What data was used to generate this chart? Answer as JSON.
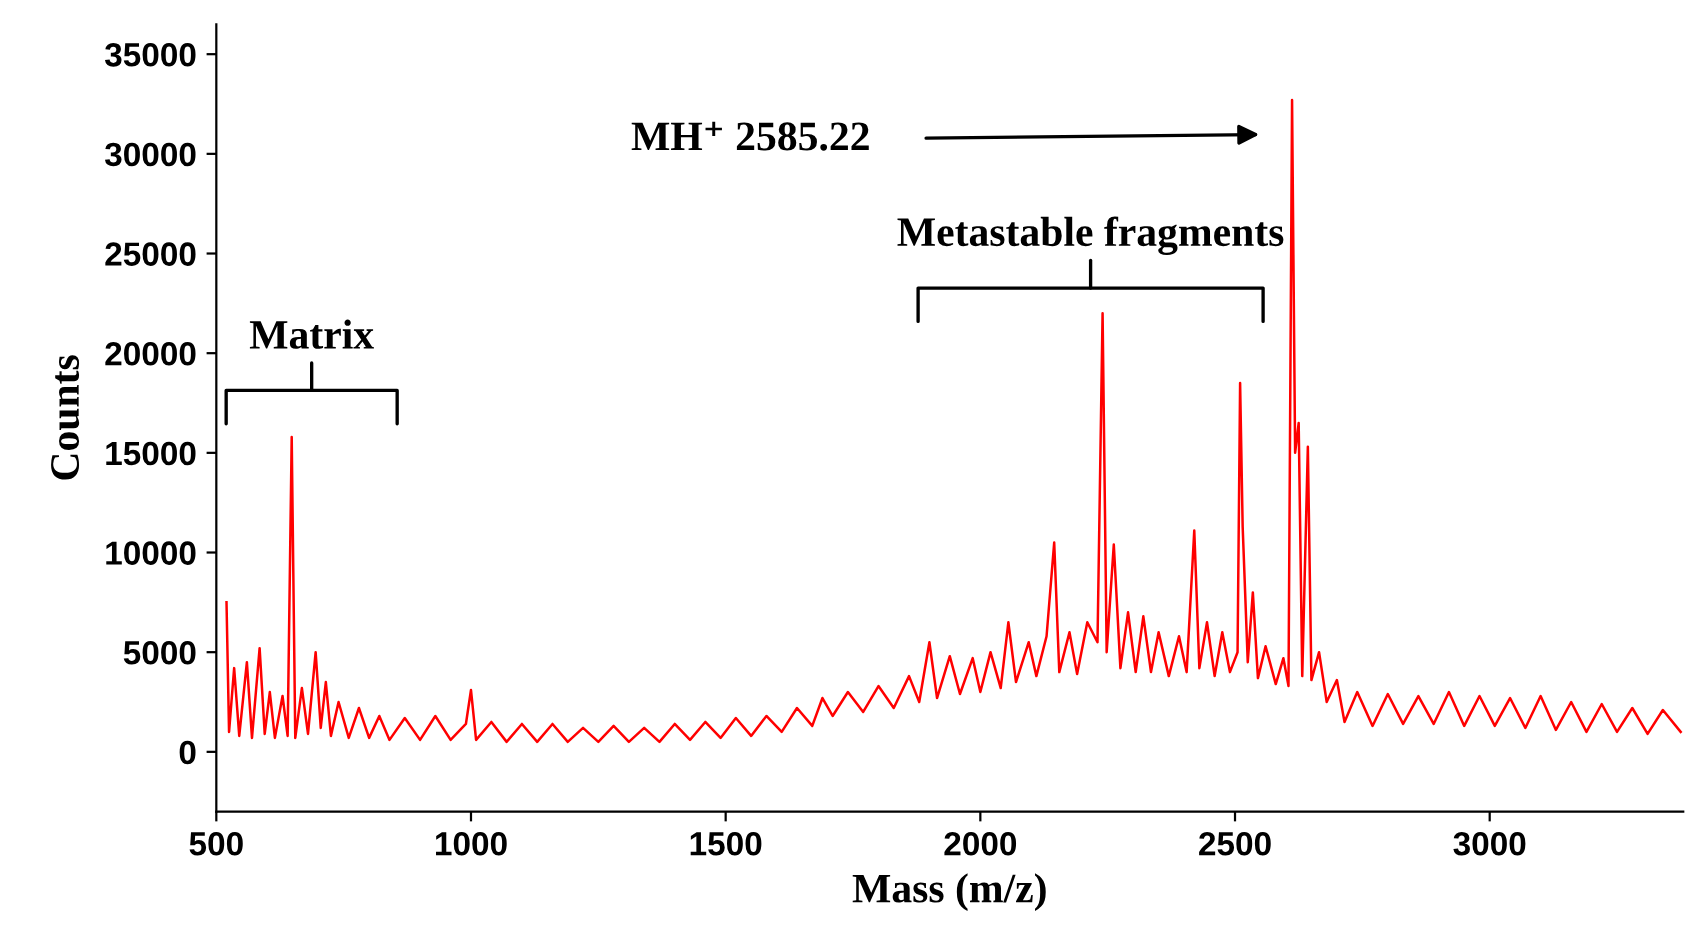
{
  "chart_data": {
    "type": "line",
    "xlabel": "Mass (m/z)",
    "ylabel": "Counts",
    "xlim": [
      500,
      3380
    ],
    "xticks": [
      500,
      1000,
      1500,
      2000,
      2500,
      3000
    ],
    "ylim": [
      -3000,
      36500
    ],
    "yticks": [
      0,
      5000,
      10000,
      15000,
      20000,
      25000,
      30000,
      35000
    ],
    "grid": false,
    "legend": false,
    "marker": "none",
    "line_style": "solid",
    "series": [
      {
        "color": "#ff0000",
        "x": [
          520,
          525,
          535,
          545,
          560,
          570,
          585,
          595,
          605,
          615,
          630,
          640,
          648,
          655,
          668,
          680,
          695,
          705,
          715,
          725,
          740,
          760,
          780,
          800,
          820,
          840,
          870,
          900,
          930,
          960,
          990,
          1000,
          1010,
          1040,
          1070,
          1100,
          1130,
          1160,
          1190,
          1220,
          1250,
          1280,
          1310,
          1340,
          1370,
          1400,
          1430,
          1460,
          1490,
          1520,
          1550,
          1580,
          1610,
          1640,
          1670,
          1690,
          1710,
          1740,
          1770,
          1800,
          1830,
          1860,
          1880,
          1900,
          1915,
          1940,
          1960,
          1985,
          2000,
          2020,
          2040,
          2055,
          2070,
          2095,
          2110,
          2130,
          2145,
          2155,
          2175,
          2190,
          2210,
          2230,
          2240,
          2248,
          2262,
          2275,
          2290,
          2305,
          2320,
          2335,
          2350,
          2370,
          2390,
          2405,
          2420,
          2430,
          2445,
          2460,
          2475,
          2490,
          2505,
          2510,
          2515,
          2525,
          2535,
          2545,
          2560,
          2580,
          2595,
          2605,
          2612,
          2618,
          2625,
          2632,
          2643,
          2650,
          2665,
          2680,
          2700,
          2715,
          2740,
          2770,
          2800,
          2830,
          2860,
          2890,
          2920,
          2950,
          2980,
          3010,
          3040,
          3070,
          3100,
          3130,
          3160,
          3190,
          3220,
          3250,
          3280,
          3310,
          3340,
          3375
        ],
        "values": [
          7500,
          1000,
          4200,
          800,
          4500,
          700,
          5200,
          900,
          3000,
          700,
          2800,
          800,
          15800,
          700,
          3200,
          900,
          5000,
          1200,
          3500,
          800,
          2500,
          700,
          2200,
          700,
          1800,
          600,
          1700,
          600,
          1800,
          600,
          1400,
          3100,
          600,
          1500,
          500,
          1400,
          500,
          1400,
          500,
          1200,
          500,
          1300,
          500,
          1200,
          500,
          1400,
          600,
          1500,
          700,
          1700,
          800,
          1800,
          1000,
          2200,
          1300,
          2700,
          1800,
          3000,
          2000,
          3300,
          2200,
          3800,
          2500,
          5500,
          2700,
          4800,
          2900,
          4700,
          3000,
          5000,
          3200,
          6500,
          3500,
          5500,
          3800,
          5800,
          10500,
          4000,
          6000,
          3900,
          6500,
          5500,
          22000,
          5000,
          10400,
          4200,
          7000,
          4000,
          6800,
          4000,
          6000,
          3800,
          5800,
          4000,
          11100,
          4200,
          6500,
          3800,
          6000,
          4000,
          5000,
          18500,
          11300,
          4500,
          8000,
          3700,
          5300,
          3400,
          4700,
          3300,
          32700,
          15000,
          16500,
          3800,
          15300,
          3600,
          5000,
          2500,
          3600,
          1500,
          3000,
          1300,
          2900,
          1400,
          2800,
          1400,
          3000,
          1300,
          2800,
          1300,
          2700,
          1200,
          2800,
          1100,
          2500,
          1000,
          2400,
          1000,
          2200,
          900,
          2100,
          1000
        ]
      }
    ],
    "annotations": [
      "Matrix",
      "Metastable fragments",
      "MH⁺ 2585.22"
    ]
  }
}
